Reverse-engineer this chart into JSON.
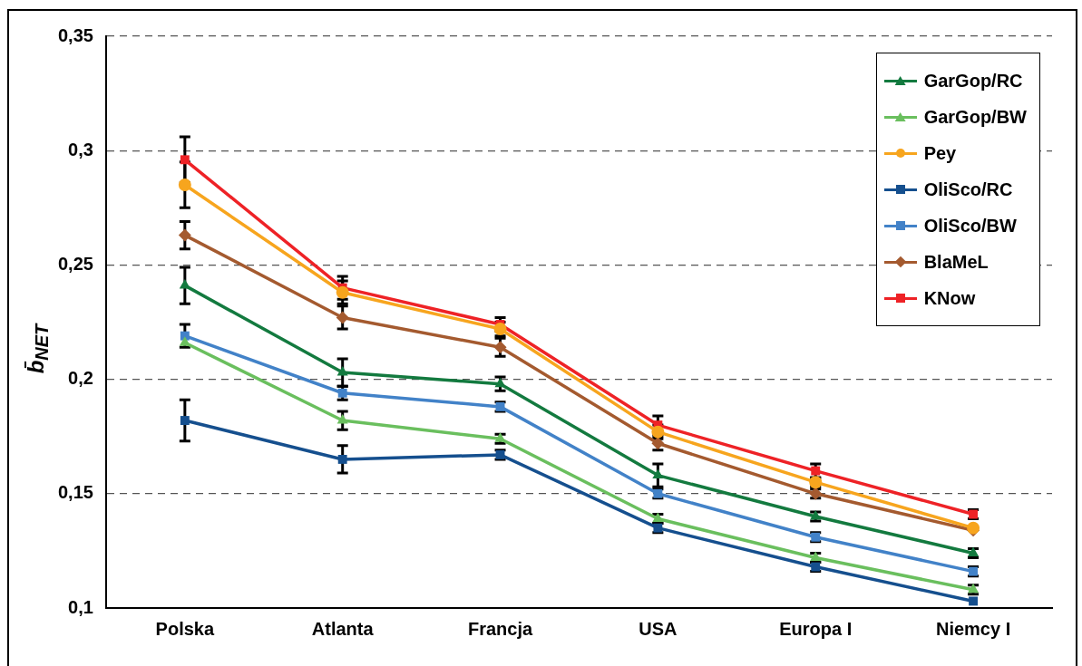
{
  "chart_data": {
    "type": "line",
    "ylabel": "b̄$_{NET}$",
    "categories": [
      "Polska",
      "Atlanta",
      "Francja",
      "USA",
      "Europa I",
      "Niemcy I"
    ],
    "ylim": [
      0.1,
      0.35
    ],
    "yticks": [
      {
        "value": 0.1,
        "label": "0,1"
      },
      {
        "value": 0.15,
        "label": "0,15"
      },
      {
        "value": 0.2,
        "label": "0,2"
      },
      {
        "value": 0.25,
        "label": "0,25"
      },
      {
        "value": 0.3,
        "label": "0,3"
      },
      {
        "value": 0.35,
        "label": "0,35"
      }
    ],
    "grid": "y",
    "legend": "top right",
    "line_style": "solid",
    "series": [
      {
        "name": "GarGop/RC",
        "color": "#137a3f",
        "marker": "triangle",
        "values": [
          0.241,
          0.203,
          0.198,
          0.158,
          0.14,
          0.124
        ],
        "errors": [
          0.008,
          0.006,
          0.003,
          0.005,
          0.002,
          0.002
        ]
      },
      {
        "name": "GarGop/BW",
        "color": "#6abf5e",
        "marker": "triangle",
        "values": [
          0.216,
          0.182,
          0.174,
          0.139,
          0.122,
          0.108
        ],
        "errors": [
          null,
          0.004,
          0.002,
          0.002,
          0.002,
          0.002
        ]
      },
      {
        "name": "Pey",
        "color": "#f7a51e",
        "marker": "circle",
        "values": [
          0.285,
          0.238,
          0.222,
          0.177,
          0.155,
          0.135
        ],
        "errors": [
          0.01,
          0.005,
          0.003,
          0.003,
          0.002,
          null
        ]
      },
      {
        "name": "OliSco/RC",
        "color": "#154f8e",
        "marker": "square",
        "values": [
          0.182,
          0.165,
          0.167,
          0.135,
          0.118,
          0.103
        ],
        "errors": [
          0.009,
          0.006,
          0.002,
          0.002,
          0.002,
          null
        ]
      },
      {
        "name": "OliSco/BW",
        "color": "#4282c8",
        "marker": "square",
        "values": [
          0.219,
          0.194,
          0.188,
          0.15,
          0.131,
          0.116
        ],
        "errors": [
          0.005,
          0.003,
          0.002,
          0.002,
          0.002,
          0.002
        ]
      },
      {
        "name": "BlaMeL",
        "color": "#a45a2f",
        "marker": "diamond",
        "values": [
          0.263,
          0.227,
          0.214,
          0.172,
          0.15,
          0.134
        ],
        "errors": [
          0.006,
          0.005,
          0.004,
          0.003,
          0.002,
          null
        ]
      },
      {
        "name": "KNow",
        "color": "#ee2226",
        "marker": "square",
        "values": [
          0.296,
          0.24,
          0.224,
          0.18,
          0.16,
          0.141
        ],
        "errors": [
          0.01,
          0.005,
          0.003,
          0.004,
          0.003,
          0.002
        ]
      }
    ]
  }
}
